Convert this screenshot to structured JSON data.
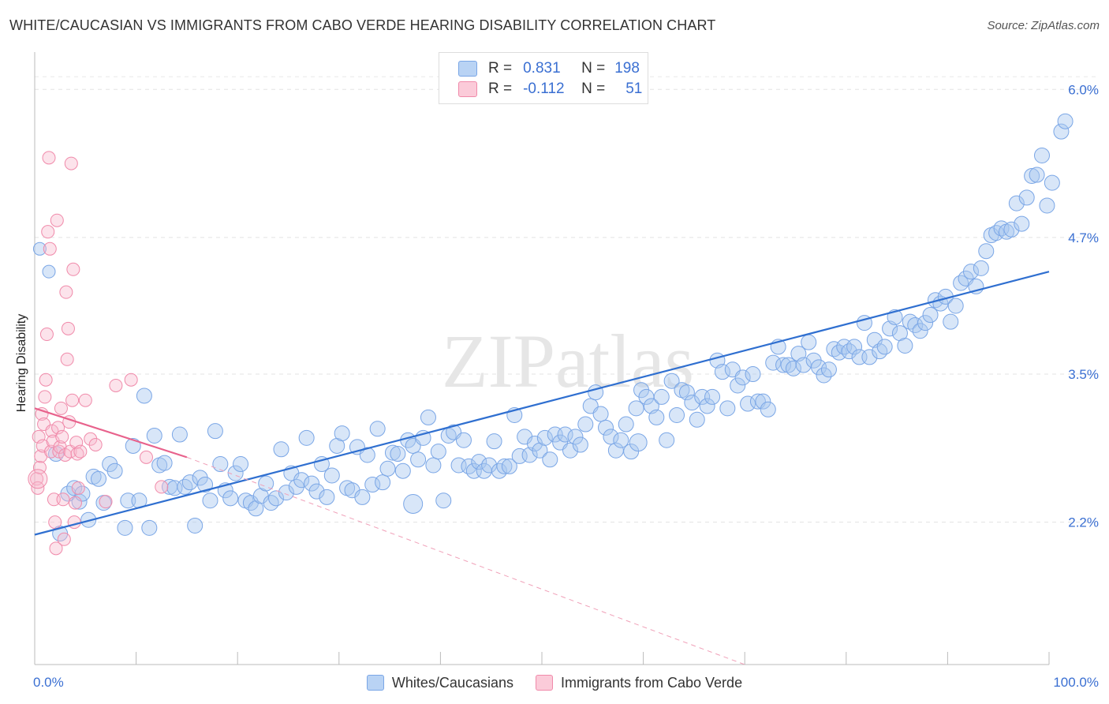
{
  "header": {
    "title": "WHITE/CAUCASIAN VS IMMIGRANTS FROM CABO VERDE HEARING DISABILITY CORRELATION CHART",
    "source": "Source: ZipAtlas.com"
  },
  "watermark": "ZIPatlas",
  "legend": {
    "r_label": "R =",
    "n_label": "N =",
    "rows": [
      {
        "r": "0.831",
        "n": "198",
        "color": "#a9c8f0"
      },
      {
        "r": "-0.112",
        "n": "51",
        "color": "#f7b9cc"
      }
    ]
  },
  "chart_data": {
    "type": "scatter",
    "title": "WHITE/CAUCASIAN VS IMMIGRANTS FROM CABO VERDE HEARING DISABILITY CORRELATION CHART",
    "xlabel": "",
    "ylabel": "Hearing Disability",
    "xlim": [
      0,
      100
    ],
    "ylim": [
      0.95,
      6.3
    ],
    "x_tick_labels": [
      "0.0%",
      "100.0%"
    ],
    "y_ticks": [
      2.2,
      3.5,
      4.7,
      6.0
    ],
    "y_tick_labels": [
      "2.2%",
      "3.5%",
      "4.7%",
      "6.0%"
    ],
    "grid": true,
    "legend_position": "bottom",
    "series": [
      {
        "name": "Whites/Caucasians",
        "color": "#7aa6e6",
        "r": 0.831,
        "n": 198,
        "trend": {
          "x": [
            0,
            100
          ],
          "y": [
            2.09,
            4.4
          ]
        },
        "points": [
          [
            0.5,
            4.6
          ],
          [
            1.4,
            4.4
          ],
          [
            2.1,
            2.8
          ],
          [
            2.5,
            2.1
          ],
          [
            3.3,
            2.45
          ],
          [
            3.9,
            2.5
          ],
          [
            4.4,
            2.38
          ],
          [
            4.7,
            2.45
          ],
          [
            5.3,
            2.22
          ],
          [
            5.8,
            2.6
          ],
          [
            6.3,
            2.58
          ],
          [
            6.8,
            2.37
          ],
          [
            7.4,
            2.71
          ],
          [
            7.9,
            2.65
          ],
          [
            8.9,
            2.15
          ],
          [
            9.2,
            2.39
          ],
          [
            9.7,
            2.87
          ],
          [
            10.3,
            2.39
          ],
          [
            10.8,
            3.31
          ],
          [
            11.3,
            2.15
          ],
          [
            11.8,
            2.96
          ],
          [
            12.3,
            2.7
          ],
          [
            12.8,
            2.72
          ],
          [
            13.3,
            2.51
          ],
          [
            13.8,
            2.5
          ],
          [
            14.3,
            2.97
          ],
          [
            14.8,
            2.51
          ],
          [
            15.3,
            2.55
          ],
          [
            15.8,
            2.17
          ],
          [
            16.3,
            2.59
          ],
          [
            16.8,
            2.53
          ],
          [
            17.3,
            2.39
          ],
          [
            17.8,
            3.0
          ],
          [
            18.3,
            2.71
          ],
          [
            18.8,
            2.48
          ],
          [
            19.3,
            2.41
          ],
          [
            19.8,
            2.63
          ],
          [
            20.3,
            2.71
          ],
          [
            20.8,
            2.39
          ],
          [
            21.3,
            2.37
          ],
          [
            21.8,
            2.32
          ],
          [
            22.3,
            2.43
          ],
          [
            22.8,
            2.54
          ],
          [
            23.3,
            2.37
          ],
          [
            23.8,
            2.41
          ],
          [
            24.3,
            2.84
          ],
          [
            24.8,
            2.46
          ],
          [
            25.3,
            2.63
          ],
          [
            25.8,
            2.51
          ],
          [
            26.3,
            2.57
          ],
          [
            26.8,
            2.94
          ],
          [
            27.3,
            2.54
          ],
          [
            27.8,
            2.47
          ],
          [
            28.3,
            2.71
          ],
          [
            28.8,
            2.42
          ],
          [
            29.3,
            2.61
          ],
          [
            29.8,
            2.87
          ],
          [
            30.3,
            2.98
          ],
          [
            30.8,
            2.5
          ],
          [
            31.3,
            2.48
          ],
          [
            31.8,
            2.86
          ],
          [
            32.3,
            2.42
          ],
          [
            32.8,
            2.79
          ],
          [
            33.3,
            2.53
          ],
          [
            33.8,
            3.02
          ],
          [
            34.3,
            2.55
          ],
          [
            34.8,
            2.67
          ],
          [
            35.3,
            2.81
          ],
          [
            35.8,
            2.8
          ],
          [
            36.3,
            2.65
          ],
          [
            36.8,
            2.92
          ],
          [
            37.3,
            2.87
          ],
          [
            37.8,
            2.75
          ],
          [
            38.3,
            2.94
          ],
          [
            38.8,
            3.12
          ],
          [
            39.3,
            2.7
          ],
          [
            39.8,
            2.82
          ],
          [
            40.3,
            2.39
          ],
          [
            40.8,
            2.96
          ],
          [
            41.3,
            2.99
          ],
          [
            41.8,
            2.7
          ],
          [
            42.3,
            2.92
          ],
          [
            42.8,
            2.69
          ],
          [
            43.3,
            2.65
          ],
          [
            43.8,
            2.73
          ],
          [
            44.3,
            2.65
          ],
          [
            44.8,
            2.7
          ],
          [
            45.3,
            2.91
          ],
          [
            45.8,
            2.65
          ],
          [
            46.3,
            2.69
          ],
          [
            46.8,
            2.69
          ],
          [
            47.3,
            3.14
          ],
          [
            47.8,
            2.78
          ],
          [
            48.3,
            2.95
          ],
          [
            48.8,
            2.79
          ],
          [
            49.3,
            2.89
          ],
          [
            49.8,
            2.83
          ],
          [
            50.3,
            2.94
          ],
          [
            50.8,
            2.75
          ],
          [
            51.3,
            2.97
          ],
          [
            51.8,
            2.9
          ],
          [
            52.3,
            2.97
          ],
          [
            52.8,
            2.83
          ],
          [
            53.3,
            2.95
          ],
          [
            53.8,
            2.88
          ],
          [
            54.3,
            3.06
          ],
          [
            54.8,
            3.22
          ],
          [
            55.3,
            3.34
          ],
          [
            55.8,
            3.15
          ],
          [
            56.3,
            3.03
          ],
          [
            56.8,
            2.95
          ],
          [
            57.3,
            2.83
          ],
          [
            57.8,
            2.92
          ],
          [
            58.3,
            3.06
          ],
          [
            58.8,
            2.82
          ],
          [
            59.3,
            3.2
          ],
          [
            59.8,
            3.36
          ],
          [
            60.3,
            3.3
          ],
          [
            60.8,
            3.22
          ],
          [
            61.3,
            3.12
          ],
          [
            61.8,
            3.3
          ],
          [
            62.3,
            2.92
          ],
          [
            62.8,
            3.44
          ],
          [
            63.3,
            3.14
          ],
          [
            63.8,
            3.36
          ],
          [
            64.3,
            3.34
          ],
          [
            64.8,
            3.25
          ],
          [
            65.3,
            3.1
          ],
          [
            65.8,
            3.3
          ],
          [
            66.3,
            3.22
          ],
          [
            66.8,
            3.3
          ],
          [
            67.3,
            3.62
          ],
          [
            67.8,
            3.52
          ],
          [
            68.3,
            3.2
          ],
          [
            68.8,
            3.54
          ],
          [
            69.3,
            3.4
          ],
          [
            69.8,
            3.47
          ],
          [
            70.3,
            3.24
          ],
          [
            70.8,
            3.5
          ],
          [
            71.3,
            3.26
          ],
          [
            71.8,
            3.26
          ],
          [
            72.3,
            3.19
          ],
          [
            72.8,
            3.6
          ],
          [
            73.3,
            3.74
          ],
          [
            73.8,
            3.58
          ],
          [
            74.3,
            3.58
          ],
          [
            74.8,
            3.55
          ],
          [
            75.3,
            3.68
          ],
          [
            75.8,
            3.58
          ],
          [
            76.3,
            3.78
          ],
          [
            76.8,
            3.62
          ],
          [
            77.3,
            3.56
          ],
          [
            77.8,
            3.49
          ],
          [
            78.3,
            3.54
          ],
          [
            78.8,
            3.72
          ],
          [
            79.3,
            3.69
          ],
          [
            79.8,
            3.74
          ],
          [
            80.3,
            3.7
          ],
          [
            80.8,
            3.74
          ],
          [
            81.3,
            3.65
          ],
          [
            81.8,
            3.95
          ],
          [
            82.3,
            3.65
          ],
          [
            82.8,
            3.8
          ],
          [
            83.3,
            3.7
          ],
          [
            83.8,
            3.74
          ],
          [
            84.3,
            3.9
          ],
          [
            84.8,
            4.0
          ],
          [
            85.3,
            3.86
          ],
          [
            85.8,
            3.75
          ],
          [
            86.3,
            3.96
          ],
          [
            86.8,
            3.93
          ],
          [
            87.3,
            3.88
          ],
          [
            87.8,
            3.95
          ],
          [
            88.3,
            4.02
          ],
          [
            88.8,
            4.15
          ],
          [
            89.3,
            4.12
          ],
          [
            89.8,
            4.18
          ],
          [
            90.3,
            3.96
          ],
          [
            90.8,
            4.1
          ],
          [
            91.3,
            4.3
          ],
          [
            91.8,
            4.34
          ],
          [
            92.3,
            4.4
          ],
          [
            92.8,
            4.27
          ],
          [
            93.3,
            4.43
          ],
          [
            93.8,
            4.58
          ],
          [
            94.3,
            4.72
          ],
          [
            94.8,
            4.74
          ],
          [
            95.3,
            4.78
          ],
          [
            95.8,
            4.75
          ],
          [
            96.3,
            4.77
          ],
          [
            96.8,
            5.0
          ],
          [
            97.3,
            4.82
          ],
          [
            97.8,
            5.05
          ],
          [
            98.3,
            5.24
          ],
          [
            98.8,
            5.25
          ],
          [
            99.3,
            5.42
          ],
          [
            99.8,
            4.98
          ],
          [
            100.3,
            5.18
          ],
          [
            101.2,
            5.63
          ],
          [
            101.6,
            5.72
          ]
        ]
      },
      {
        "name": "Immigrants from Cabo Verde",
        "color": "#f08aaa",
        "r": -0.112,
        "n": 51,
        "trend": {
          "x": [
            0,
            15
          ],
          "y": [
            3.2,
            2.77
          ]
        },
        "trend_ext": {
          "x": [
            15,
            70
          ],
          "y": [
            2.77,
            0.95
          ]
        },
        "points": [
          [
            0.2,
            2.58
          ],
          [
            0.3,
            2.5
          ],
          [
            0.4,
            2.95
          ],
          [
            0.5,
            2.68
          ],
          [
            0.6,
            2.78
          ],
          [
            0.7,
            3.15
          ],
          [
            0.8,
            2.87
          ],
          [
            0.9,
            3.06
          ],
          [
            1.0,
            3.3
          ],
          [
            1.1,
            3.45
          ],
          [
            1.2,
            3.85
          ],
          [
            1.3,
            4.75
          ],
          [
            1.4,
            5.4
          ],
          [
            1.5,
            4.6
          ],
          [
            1.6,
            2.82
          ],
          [
            1.7,
            3.0
          ],
          [
            1.8,
            2.91
          ],
          [
            1.9,
            2.4
          ],
          [
            2.0,
            2.2
          ],
          [
            2.1,
            1.97
          ],
          [
            2.2,
            4.85
          ],
          [
            2.3,
            3.03
          ],
          [
            2.4,
            2.82
          ],
          [
            2.5,
            2.86
          ],
          [
            2.6,
            3.2
          ],
          [
            2.7,
            2.95
          ],
          [
            2.8,
            2.4
          ],
          [
            2.9,
            2.05
          ],
          [
            3.0,
            2.79
          ],
          [
            3.1,
            4.22
          ],
          [
            3.2,
            3.63
          ],
          [
            3.3,
            3.9
          ],
          [
            3.4,
            3.08
          ],
          [
            3.5,
            2.82
          ],
          [
            3.6,
            5.35
          ],
          [
            3.7,
            3.27
          ],
          [
            3.8,
            4.42
          ],
          [
            3.9,
            2.2
          ],
          [
            4.0,
            2.37
          ],
          [
            4.1,
            2.9
          ],
          [
            4.2,
            2.8
          ],
          [
            4.3,
            2.5
          ],
          [
            4.5,
            2.82
          ],
          [
            5.0,
            3.27
          ],
          [
            5.5,
            2.93
          ],
          [
            6.0,
            2.88
          ],
          [
            7.0,
            2.38
          ],
          [
            8.0,
            3.4
          ],
          [
            9.5,
            3.45
          ],
          [
            11.0,
            2.77
          ],
          [
            12.5,
            2.51
          ]
        ]
      }
    ]
  }
}
